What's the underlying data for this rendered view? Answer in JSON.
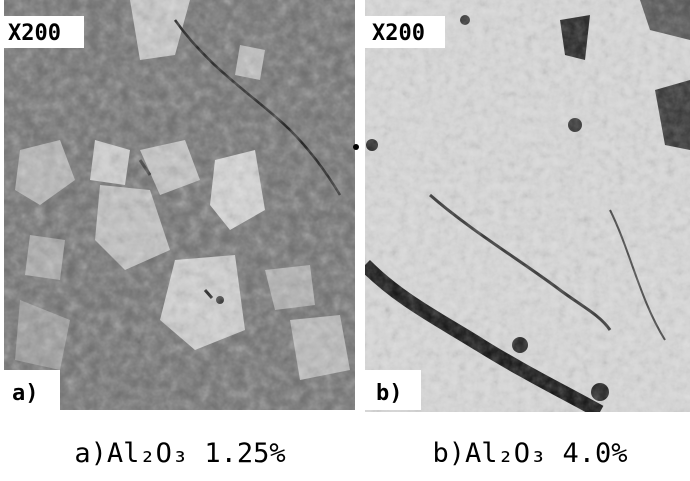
{
  "panels": [
    {
      "magnification": "X200",
      "label": "a)",
      "caption": "a)Al₂O₃ 1.25%"
    },
    {
      "magnification": "X200",
      "label": "b)",
      "caption": "b)Al₂O₃ 4.0%"
    }
  ]
}
